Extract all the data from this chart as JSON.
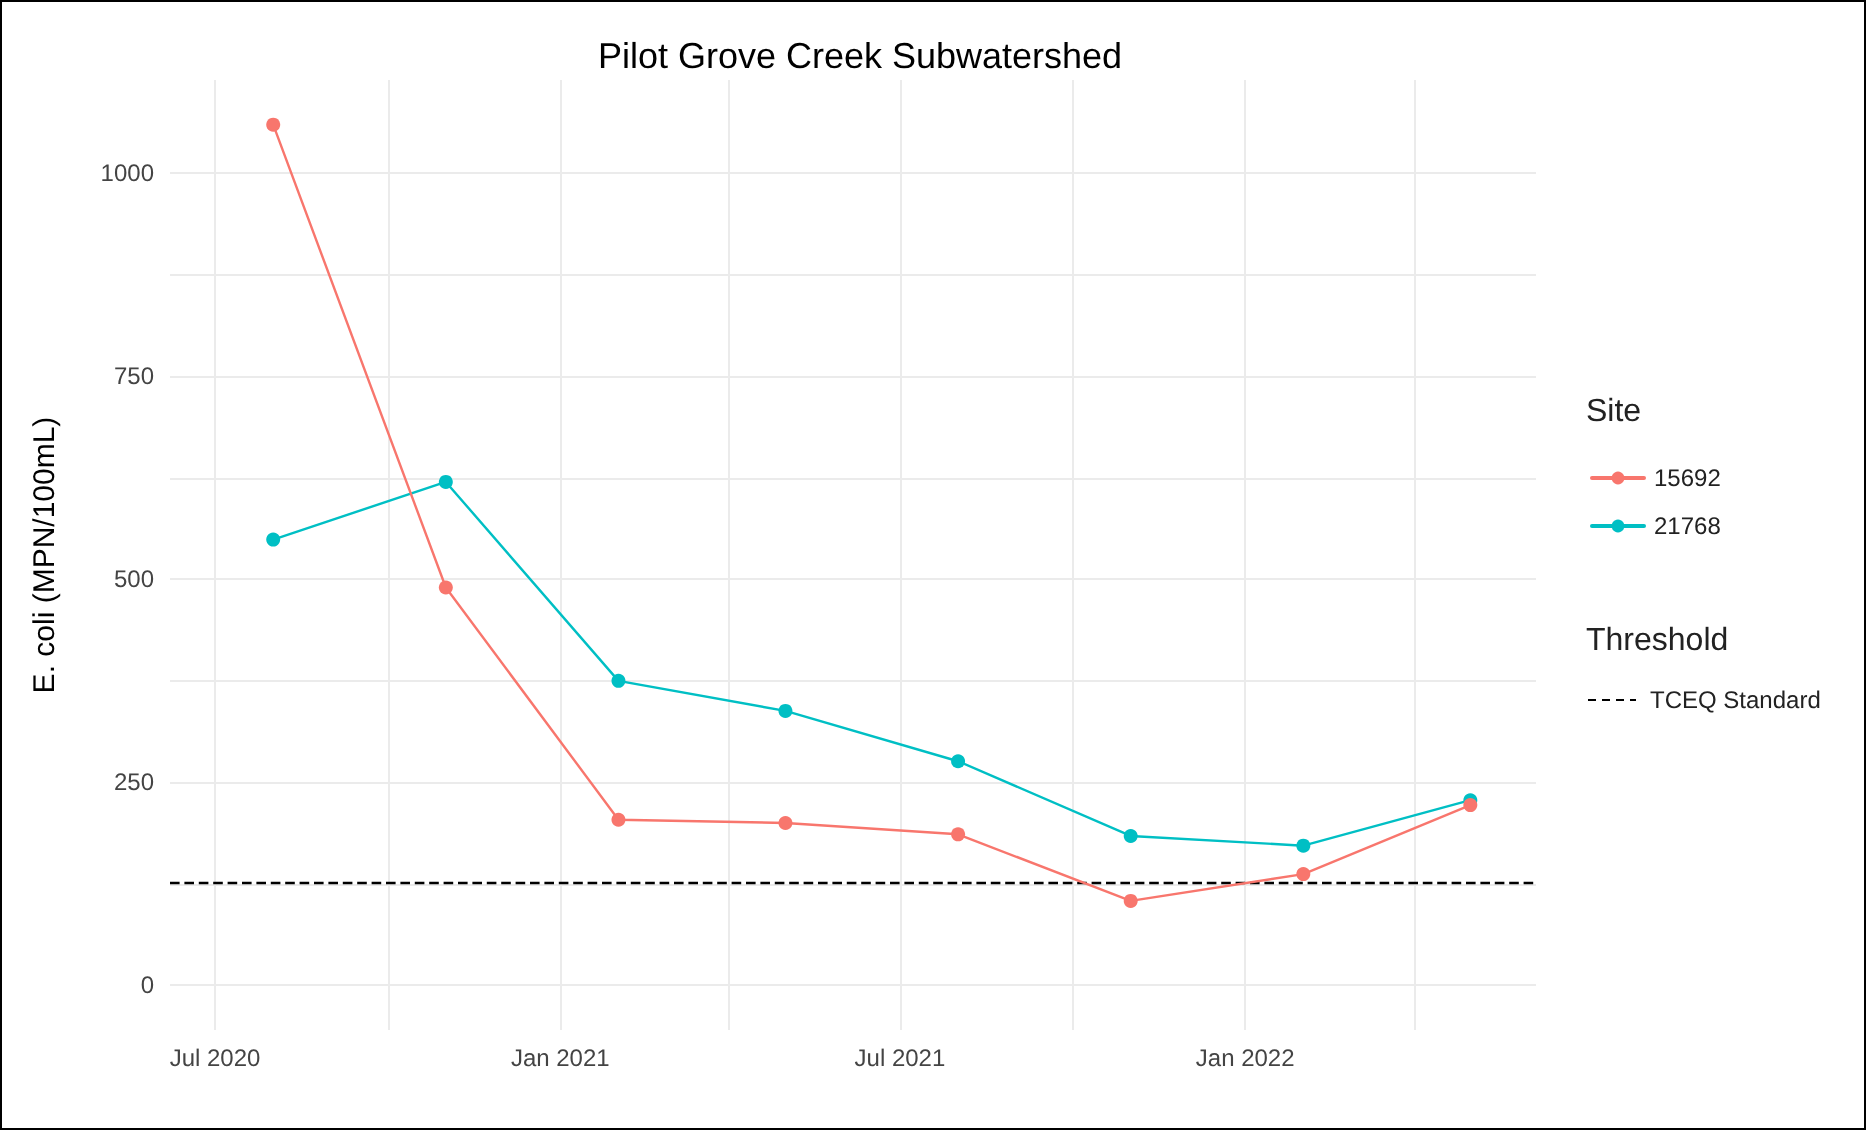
{
  "chart_data": {
    "type": "line",
    "title": "Pilot Grove Creek Subwatershed",
    "ylabel": "E. coli (MPN/100mL)",
    "legend_title": "Site",
    "annotations": [
      "Threshold"
    ],
    "x": [
      "2020-08-01",
      "2020-11-01",
      "2021-02-01",
      "2021-05-01",
      "2021-08-01",
      "2021-11-01",
      "2022-02-01",
      "2022-05-01"
    ],
    "series": [
      {
        "name": "15692",
        "color": "#f8766d",
        "values": [
          1060,
          490,
          204,
          200,
          186,
          104,
          137,
          222
        ]
      },
      {
        "name": "21768",
        "color": "#00bfc4",
        "values": [
          549,
          620,
          375,
          338,
          276,
          184,
          172,
          228
        ]
      }
    ],
    "xlim": [
      "2020-06-07",
      "2022-06-05"
    ],
    "xticks": [
      {
        "value": "2020-07-01",
        "label": "Jul 2020"
      },
      {
        "value": "2020-10-01",
        "label": null
      },
      {
        "value": "2021-01-01",
        "label": "Jan 2021"
      },
      {
        "value": "2021-04-01",
        "label": null
      },
      {
        "value": "2021-07-01",
        "label": "Jul 2021"
      },
      {
        "value": "2021-10-01",
        "label": null
      },
      {
        "value": "2022-01-01",
        "label": "Jan 2022"
      },
      {
        "value": "2022-04-01",
        "label": null
      }
    ],
    "ylim": [
      -55,
      1115
    ],
    "yticks": [
      0,
      {
        "value": 125,
        "label": null
      },
      250,
      {
        "value": 375,
        "label": null
      },
      500,
      {
        "value": 625,
        "label": null
      },
      750,
      {
        "value": 875,
        "label": null
      },
      1000
    ],
    "ref_lines": [
      {
        "axis": "y",
        "value": 126,
        "label": "TCEQ Standard",
        "color": "#000000",
        "line_style": "dashed"
      }
    ],
    "grid": true,
    "legend": "right",
    "marker": "circle",
    "line_style": "solid"
  }
}
